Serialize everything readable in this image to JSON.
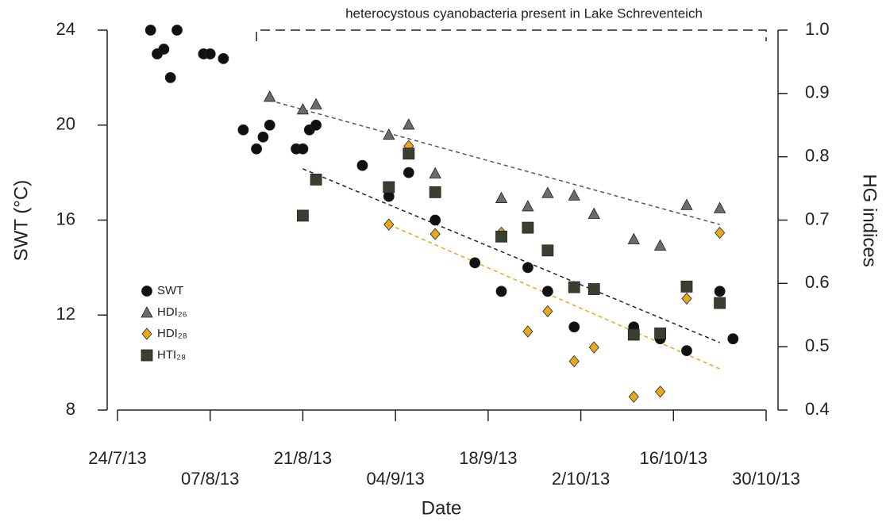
{
  "chart_data": {
    "type": "scatter",
    "annotation": {
      "text": "heterocystous cyanobacteria present in Lake Schreventeich",
      "x_start": "2013-08-14"
    },
    "xlabel": "Date",
    "ylabel": "SWT (°C)",
    "y2label": "HG indices",
    "xlim": [
      "2013-07-24",
      "2013-10-30"
    ],
    "xticks": [
      {
        "value": "2013-07-24",
        "label": "24/7/13"
      },
      {
        "value": "2013-08-07",
        "label": "07/8/13"
      },
      {
        "value": "2013-08-21",
        "label": "21/8/13"
      },
      {
        "value": "2013-09-04",
        "label": "04/9/13"
      },
      {
        "value": "2013-09-18",
        "label": "18/9/13"
      },
      {
        "value": "2013-10-02",
        "label": "2/10/13"
      },
      {
        "value": "2013-10-16",
        "label": "16/10/13"
      },
      {
        "value": "2013-10-30",
        "label": "30/10/13"
      }
    ],
    "ylim": [
      8,
      24
    ],
    "yticks": [
      8,
      12,
      16,
      20,
      24
    ],
    "y2lim": [
      0.4,
      1.0
    ],
    "y2ticks": [
      0.4,
      0.5,
      0.6,
      0.7,
      0.8,
      0.9,
      {
        "value": 1.0,
        "label": "1.0"
      }
    ],
    "legend": "lower-left",
    "series": [
      {
        "name": "SWT",
        "marker": "circle",
        "color": "#111111",
        "x": [
          "2013-07-29",
          "2013-07-30",
          "2013-07-31",
          "2013-08-01",
          "2013-08-02",
          "2013-08-06",
          "2013-08-07",
          "2013-08-09",
          "2013-08-12",
          "2013-08-14",
          "2013-08-15",
          "2013-08-16",
          "2013-08-20",
          "2013-08-21",
          "2013-08-22",
          "2013-08-23",
          "2013-08-30",
          "2013-09-03",
          "2013-09-06",
          "2013-09-10",
          "2013-09-16",
          "2013-09-20",
          "2013-09-24",
          "2013-09-27",
          "2013-10-01",
          "2013-10-10",
          "2013-10-14",
          "2013-10-18",
          "2013-10-23",
          "2013-10-25"
        ],
        "values": [
          24.0,
          23.0,
          23.2,
          22.0,
          24.0,
          23.0,
          23.0,
          22.8,
          19.8,
          19.0,
          19.5,
          20.0,
          19.0,
          19.0,
          19.8,
          20.0,
          18.3,
          17.0,
          18.0,
          16.0,
          14.2,
          13.0,
          14.0,
          13.0,
          11.5,
          11.5,
          11.0,
          10.5,
          13.0,
          11.0
        ]
      },
      {
        "name": "HDI₂₆",
        "marker": "triangle",
        "color": "#6b6b6b",
        "axis": "y2",
        "x": [
          "2013-08-16",
          "2013-08-21",
          "2013-08-23",
          "2013-09-03",
          "2013-09-06",
          "2013-09-10",
          "2013-09-20",
          "2013-09-24",
          "2013-09-27",
          "2013-10-01",
          "2013-10-04",
          "2013-10-10",
          "2013-10-14",
          "2013-10-18",
          "2013-10-23"
        ],
        "values": [
          0.895,
          0.875,
          0.883,
          0.835,
          0.851,
          0.774,
          0.735,
          0.722,
          0.743,
          0.739,
          0.71,
          0.67,
          0.66,
          0.724,
          0.719
        ]
      },
      {
        "name": "HDI₂₈",
        "marker": "diamond",
        "color": "#e8a820",
        "axis": "y2",
        "x": [
          "2013-09-03",
          "2013-09-06",
          "2013-09-10",
          "2013-09-20",
          "2013-09-24",
          "2013-09-27",
          "2013-10-01",
          "2013-10-04",
          "2013-10-10",
          "2013-10-14",
          "2013-10-18",
          "2013-10-23"
        ],
        "values": [
          0.693,
          0.817,
          0.678,
          0.68,
          0.524,
          0.556,
          0.477,
          0.499,
          0.421,
          0.429,
          0.576,
          0.68
        ]
      },
      {
        "name": "HTI₂₈",
        "marker": "square",
        "color": "#3a4030",
        "axis": "y2",
        "x": [
          "2013-08-21",
          "2013-08-23",
          "2013-09-03",
          "2013-09-06",
          "2013-09-10",
          "2013-09-20",
          "2013-09-24",
          "2013-09-27",
          "2013-10-01",
          "2013-10-04",
          "2013-10-10",
          "2013-10-14",
          "2013-10-18",
          "2013-10-23"
        ],
        "values": [
          0.707,
          0.764,
          0.752,
          0.805,
          0.744,
          0.674,
          0.688,
          0.652,
          0.594,
          0.591,
          0.519,
          0.521,
          0.595,
          0.569
        ]
      }
    ],
    "trend_lines": [
      {
        "color": "#555555",
        "axis": "y2",
        "x": [
          "2013-08-16",
          "2013-10-23"
        ],
        "values": [
          0.889,
          0.693
        ]
      },
      {
        "color": "#222222",
        "x": [
          "2013-08-21",
          "2013-10-23"
        ],
        "values": [
          18.16,
          10.84
        ]
      },
      {
        "color": "#e8a820",
        "axis": "y2",
        "x": [
          "2013-09-03",
          "2013-10-23"
        ],
        "values": [
          0.693,
          0.465
        ]
      }
    ]
  }
}
